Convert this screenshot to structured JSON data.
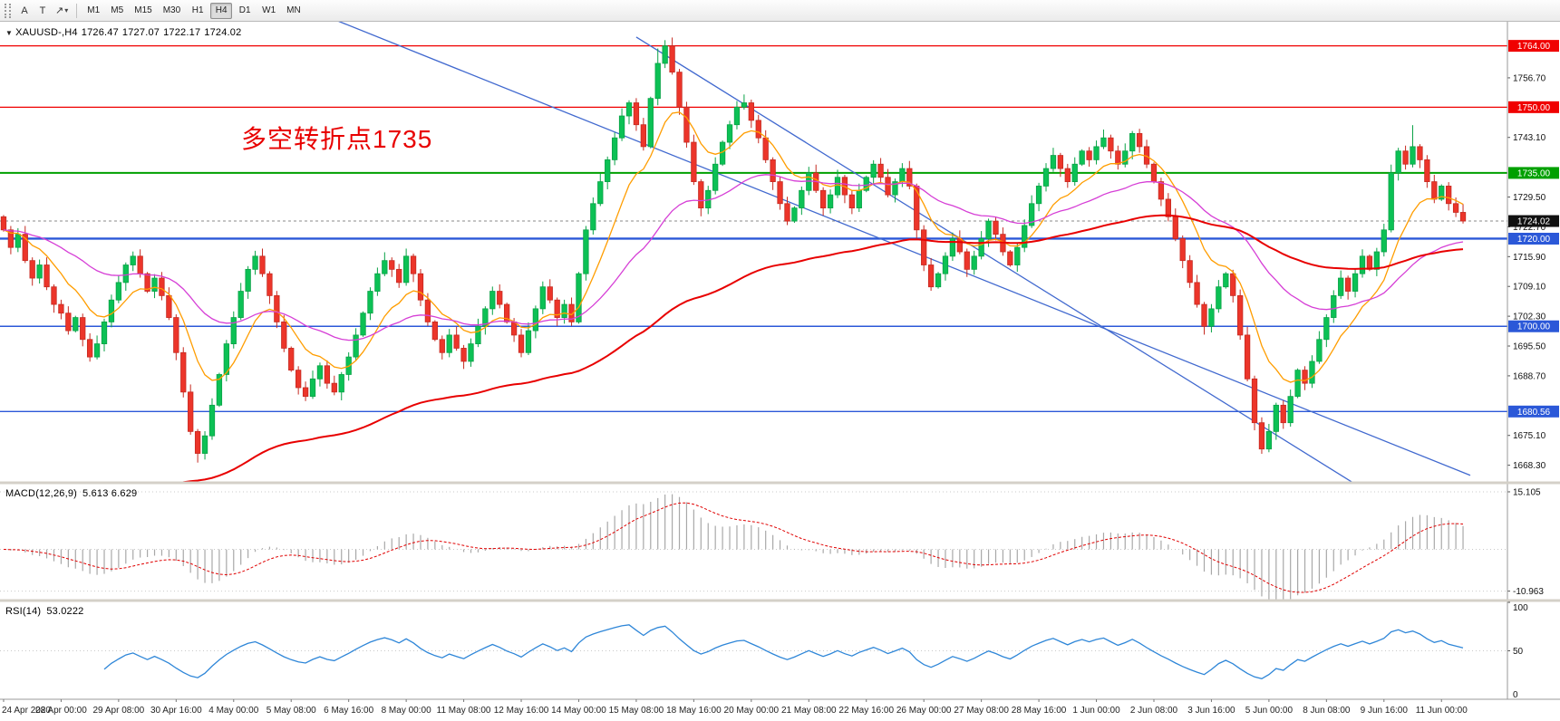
{
  "toolbar": {
    "tools": [
      {
        "name": "label-tool",
        "glyph": "A"
      },
      {
        "name": "text-tool",
        "glyph": "T"
      },
      {
        "name": "draw-arrow-tool",
        "glyph": "↗",
        "caret": "▾"
      }
    ],
    "timeframes": [
      "M1",
      "M5",
      "M15",
      "M30",
      "H1",
      "H4",
      "D1",
      "W1",
      "MN"
    ],
    "active_timeframe": "H4"
  },
  "header": {
    "dropdown_glyph": "▼",
    "symbol": "XAUUSD-,H4",
    "open": "1726.47",
    "high": "1727.07",
    "low": "1722.17",
    "close": "1724.02"
  },
  "annotation": {
    "text": "多空转折点1735",
    "color": "#e80000"
  },
  "colors": {
    "up": "#0cc155",
    "up_border": "#09a246",
    "down": "#ec352a",
    "down_border": "#c52a21",
    "ma_fast": "#ff9d00",
    "ma_mid": "#d63fd6",
    "ma_slow": "#e80000",
    "trendline": "#4169cf",
    "macd_hist": "#a8a8a8",
    "macd_signal": "#e00000",
    "rsi_line": "#2e86d8",
    "axis_text": "#111111",
    "badge_black": "#111111",
    "time_text": "#222222"
  },
  "chart_data": {
    "type": "candlestick",
    "symbol": "XAUUSD-",
    "timeframe": "H4",
    "title": "XAUUSD-,H4 1726.47 1727.07 1722.17 1724.02",
    "ohlc_current": {
      "open": 1726.47,
      "high": 1727.07,
      "low": 1722.17,
      "close": 1724.02
    },
    "first_open": 1725,
    "closes": [
      1722,
      1718,
      1721,
      1715,
      1711,
      1714,
      1709,
      1705,
      1703,
      1699,
      1702,
      1697,
      1693,
      1696,
      1701,
      1706,
      1710,
      1714,
      1716,
      1712,
      1708,
      1711,
      1707,
      1702,
      1694,
      1685,
      1676,
      1671,
      1675,
      1682,
      1689,
      1696,
      1702,
      1708,
      1713,
      1716,
      1712,
      1707,
      1701,
      1695,
      1690,
      1686,
      1684,
      1688,
      1691,
      1687,
      1685,
      1689,
      1693,
      1698,
      1703,
      1708,
      1712,
      1715,
      1713,
      1710,
      1716,
      1712,
      1706,
      1701,
      1697,
      1694,
      1698,
      1695,
      1692,
      1696,
      1700,
      1704,
      1708,
      1705,
      1701,
      1698,
      1694,
      1699,
      1704,
      1709,
      1706,
      1702,
      1705,
      1701,
      1712,
      1722,
      1728,
      1733,
      1738,
      1743,
      1748,
      1751,
      1746,
      1741,
      1752,
      1760,
      1764,
      1758,
      1750,
      1742,
      1733,
      1727,
      1731,
      1737,
      1742,
      1746,
      1750,
      1751,
      1747,
      1743,
      1738,
      1733,
      1728,
      1724,
      1727,
      1731,
      1735,
      1731,
      1727,
      1730,
      1734,
      1730,
      1727,
      1731,
      1734,
      1737,
      1734,
      1730,
      1733,
      1736,
      1732,
      1722,
      1714,
      1709,
      1712,
      1716,
      1720,
      1717,
      1713,
      1716,
      1720,
      1724,
      1721,
      1717,
      1714,
      1718,
      1723,
      1728,
      1732,
      1736,
      1739,
      1736,
      1733,
      1737,
      1740,
      1738,
      1741,
      1743,
      1740,
      1737,
      1740,
      1744,
      1741,
      1737,
      1733,
      1729,
      1725,
      1720,
      1715,
      1710,
      1705,
      1700,
      1704,
      1709,
      1712,
      1707,
      1698,
      1688,
      1678,
      1672,
      1676,
      1682,
      1678,
      1684,
      1690,
      1687,
      1692,
      1697,
      1702,
      1707,
      1711,
      1708,
      1712,
      1716,
      1713,
      1717,
      1722,
      1735,
      1740,
      1737,
      1741,
      1738,
      1733,
      1729,
      1732,
      1728,
      1726,
      1724.02
    ],
    "wick_overrides": {
      "27": {
        "low": 1668.9
      },
      "91": {
        "high": 1763.4
      },
      "92": {
        "high": 1765.3
      },
      "175": {
        "low": 1670.9
      },
      "196": {
        "high": 1745.9
      }
    },
    "y_range": [
      1664.5,
      1769.5
    ],
    "y_ticks": [
      "1756.70",
      "1743.10",
      "1729.50",
      "1722.70",
      "1715.90",
      "1709.10",
      "1702.30",
      "1695.50",
      "1688.70",
      "1675.10",
      "1668.30"
    ],
    "h_lines": [
      {
        "price": 1764.0,
        "label": "1764.00",
        "color": "#f00000",
        "width": 1.2
      },
      {
        "price": 1750.0,
        "label": "1750.00",
        "color": "#f00000",
        "width": 1.2
      },
      {
        "price": 1735.0,
        "label": "1735.00",
        "color": "#00a000",
        "width": 2
      },
      {
        "price": 1720.0,
        "label": "1720.00",
        "color": "#2b58d8",
        "width": 2.4
      },
      {
        "price": 1700.0,
        "label": "1700.00",
        "color": "#2b58d8",
        "width": 1.4
      },
      {
        "price": 1680.56,
        "label": "1680.56",
        "color": "#2b58d8",
        "width": 1.4
      }
    ],
    "current_price": {
      "value": 1724.02,
      "label": "1724.02"
    },
    "trendlines": [
      {
        "from": [
          46,
          1770
        ],
        "to": [
          204,
          1666
        ]
      },
      {
        "from": [
          88,
          1766
        ],
        "to": [
          188,
          1664
        ]
      }
    ],
    "moving_averages": [
      {
        "name": "fast-ma",
        "period": 10,
        "color_key": "ma_fast",
        "width": 1.3
      },
      {
        "name": "mid-ma",
        "period": 34,
        "color_key": "ma_mid",
        "width": 1.3
      },
      {
        "name": "slow-ma",
        "period": 90,
        "color_key": "ma_slow",
        "width": 2,
        "seed": 1632
      }
    ],
    "macd": {
      "label": "MACD(12,26,9)",
      "values_text": "5.613 6.629",
      "fast": 12,
      "slow": 26,
      "signal": 9,
      "axis_max": "15.105",
      "axis_min": "-10.963",
      "y_range": [
        -13.2,
        17.0
      ]
    },
    "rsi": {
      "label": "RSI(14)",
      "value_text": "53.0222",
      "period": 14,
      "axis_labels": [
        "100",
        "50",
        "0"
      ],
      "levels": [
        50
      ]
    },
    "x_labels": [
      "24 Apr 2020",
      "28 Apr 00:00",
      "29 Apr 08:00",
      "30 Apr 16:00",
      "4 May 00:00",
      "5 May 08:00",
      "6 May 16:00",
      "8 May 00:00",
      "11 May 08:00",
      "12 May 16:00",
      "14 May 00:00",
      "15 May 08:00",
      "18 May 16:00",
      "20 May 00:00",
      "21 May 08:00",
      "22 May 16:00",
      "26 May 00:00",
      "27 May 08:00",
      "28 May 16:00",
      "1 Jun 00:00",
      "2 Jun 08:00",
      "3 Jun 16:00",
      "5 Jun 00:00",
      "8 Jun 08:00",
      "9 Jun 16:00",
      "11 Jun 00:00"
    ],
    "label_every": 8
  }
}
